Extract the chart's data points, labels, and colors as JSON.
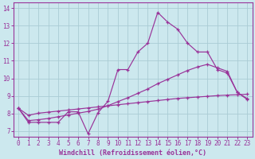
{
  "bg_color": "#cce8ee",
  "line_color": "#993399",
  "grid_color": "#aaccd4",
  "xlabel": "Windchill (Refroidissement éolien,°C)",
  "xlim": [
    -0.5,
    23.5
  ],
  "ylim": [
    6.7,
    14.3
  ],
  "yticks": [
    7,
    8,
    9,
    10,
    11,
    12,
    13,
    14
  ],
  "xticks": [
    0,
    1,
    2,
    3,
    4,
    5,
    6,
    7,
    8,
    9,
    10,
    11,
    12,
    13,
    14,
    15,
    16,
    17,
    18,
    19,
    20,
    21,
    22,
    23
  ],
  "curve1_x": [
    0,
    1,
    2,
    3,
    4,
    5,
    6,
    7,
    8,
    9,
    10,
    11,
    12,
    13,
    14,
    15,
    16,
    17,
    18,
    19,
    20,
    21,
    22,
    23
  ],
  "curve1_y": [
    8.3,
    7.5,
    7.5,
    7.5,
    7.5,
    8.1,
    8.1,
    6.85,
    8.05,
    8.7,
    10.5,
    10.5,
    11.5,
    12.0,
    13.75,
    13.2,
    12.8,
    12.0,
    11.5,
    11.5,
    10.5,
    10.3,
    9.2,
    8.8
  ],
  "curve2_x": [
    0,
    1,
    2,
    3,
    4,
    5,
    6,
    7,
    8,
    9,
    10,
    11,
    12,
    13,
    14,
    15,
    16,
    17,
    18,
    19,
    20,
    21,
    22,
    23
  ],
  "curve2_y": [
    8.3,
    7.6,
    7.65,
    7.72,
    7.82,
    7.92,
    8.02,
    8.12,
    8.25,
    8.45,
    8.68,
    8.9,
    9.15,
    9.4,
    9.7,
    9.95,
    10.2,
    10.45,
    10.65,
    10.8,
    10.6,
    10.4,
    9.2,
    8.85
  ],
  "curve3_x": [
    0,
    1,
    2,
    3,
    4,
    5,
    6,
    7,
    8,
    9,
    10,
    11,
    12,
    13,
    14,
    15,
    16,
    17,
    18,
    19,
    20,
    21,
    22,
    23
  ],
  "curve3_y": [
    8.3,
    7.9,
    8.02,
    8.08,
    8.14,
    8.2,
    8.26,
    8.32,
    8.38,
    8.44,
    8.5,
    8.56,
    8.62,
    8.68,
    8.74,
    8.8,
    8.86,
    8.9,
    8.94,
    8.98,
    9.02,
    9.05,
    9.07,
    9.1
  ],
  "markersize": 3.5,
  "linewidth": 0.85,
  "xlabel_fontsize": 6.0,
  "tick_fontsize": 5.5
}
